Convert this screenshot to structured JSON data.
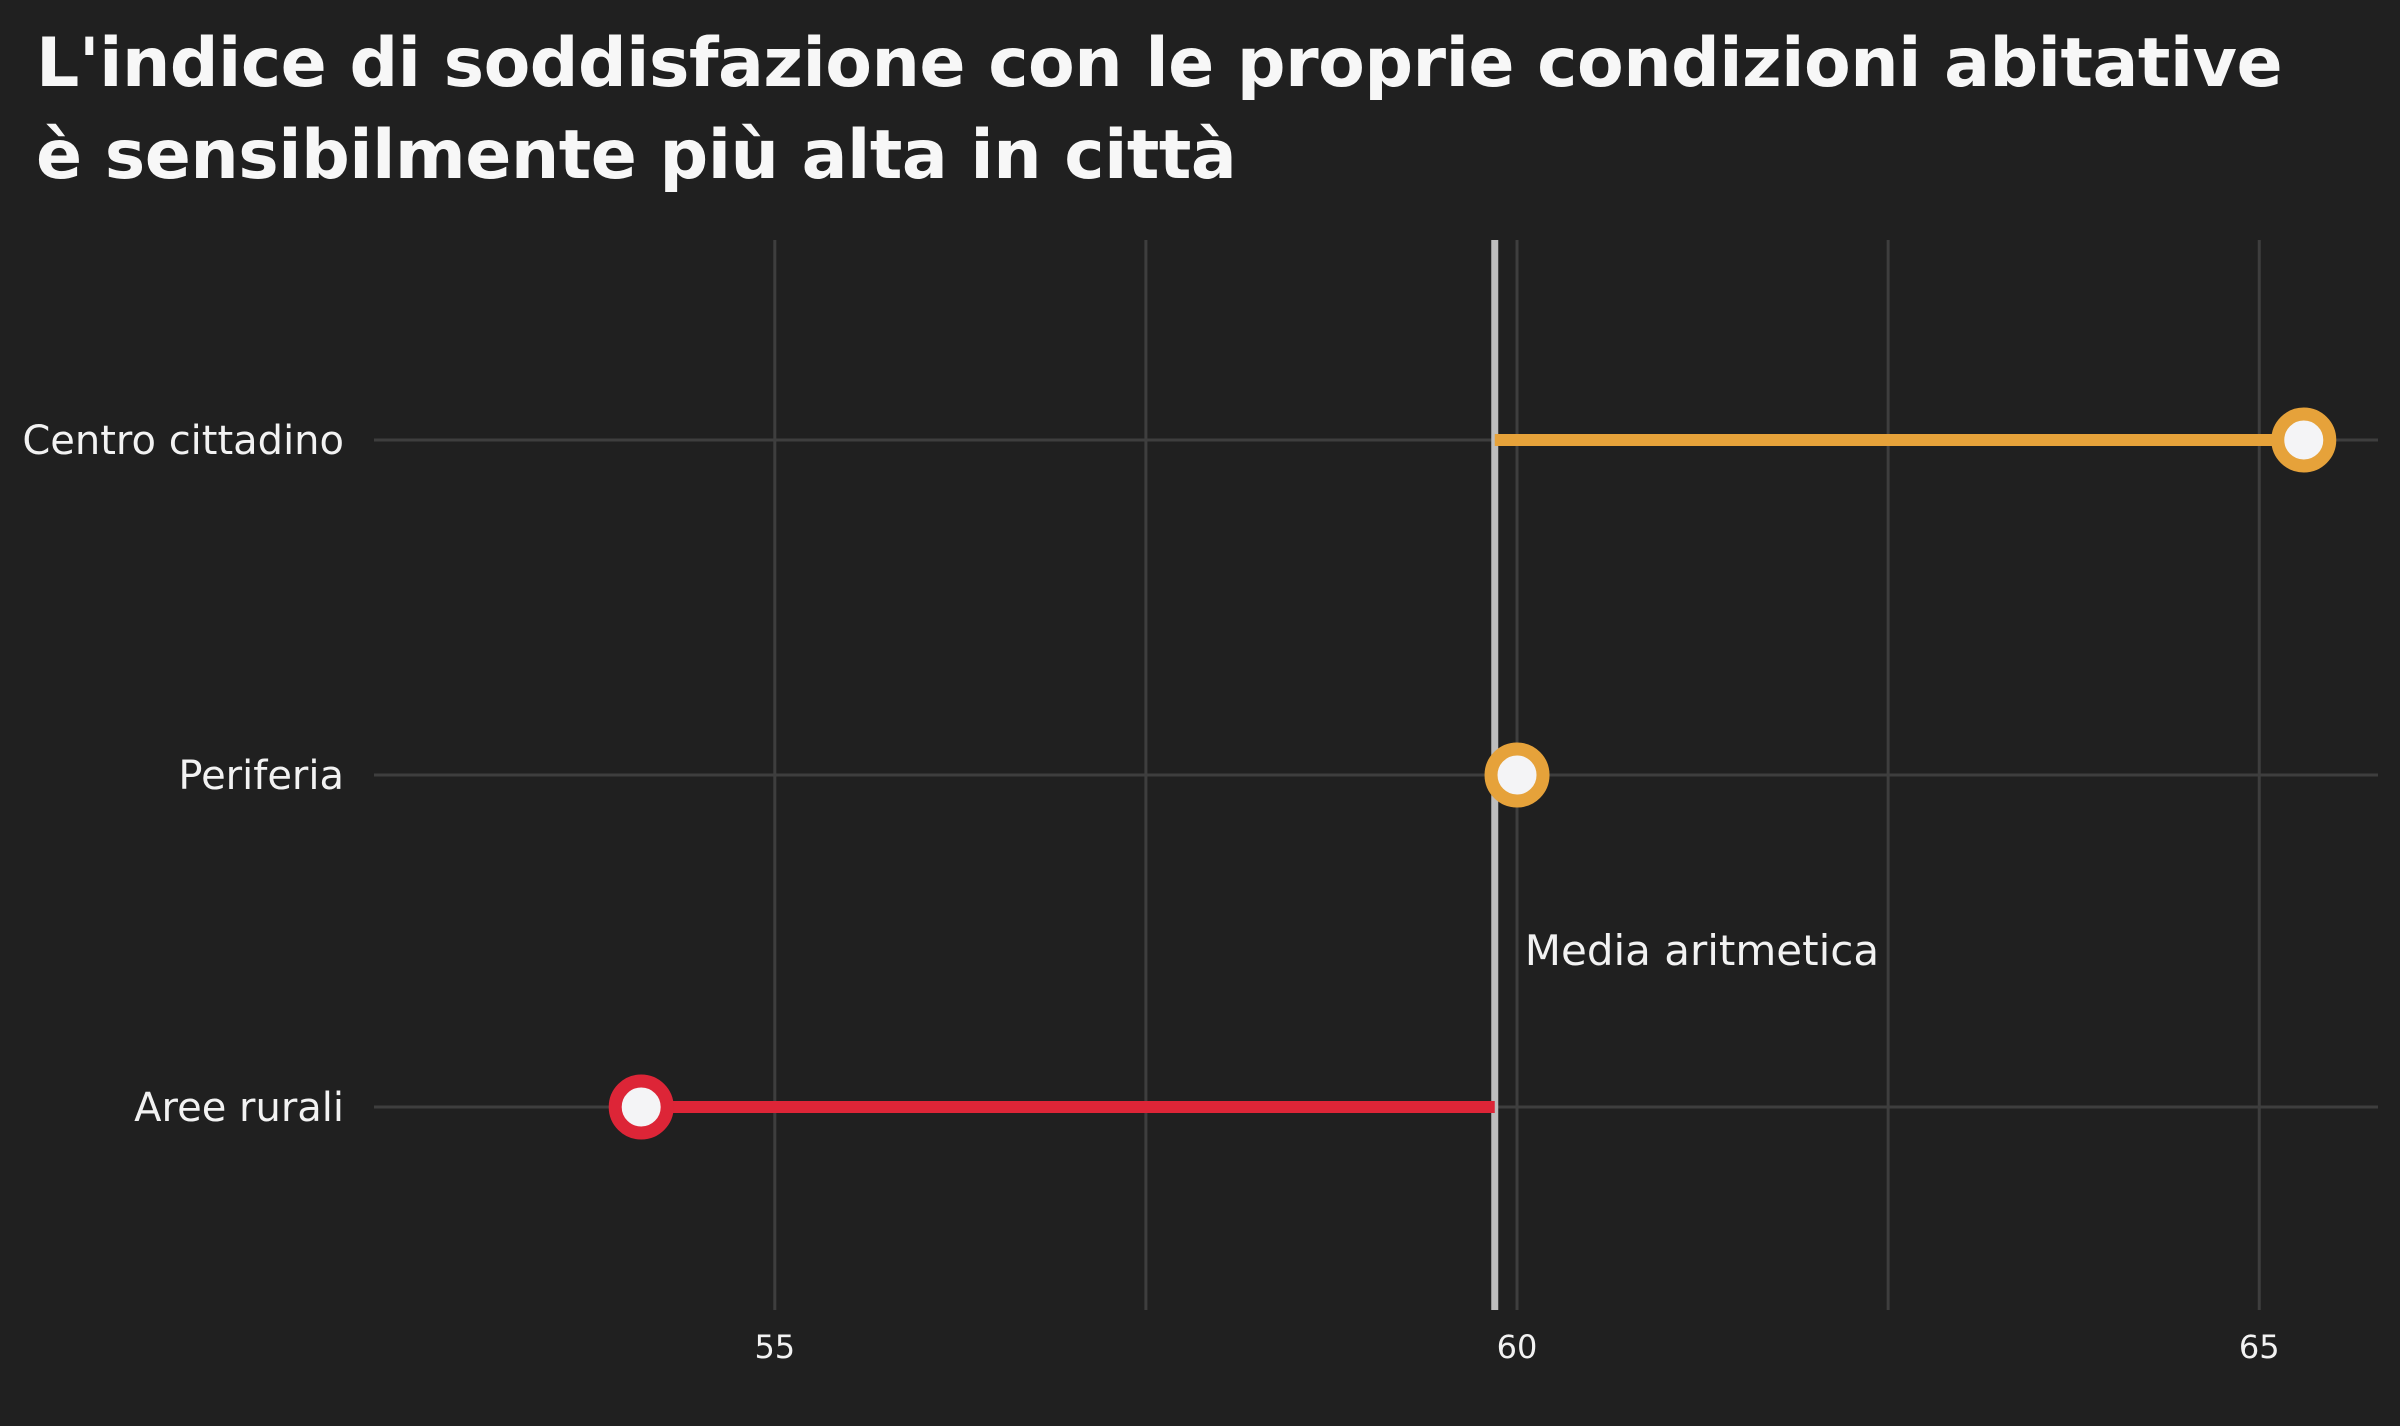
{
  "chart_data": {
    "type": "dot",
    "title": "L'indice di soddisfazione con le proprie condizioni abitative è sensibilmente più alta in città",
    "xlabel": "",
    "ylabel": "",
    "xlim": [
      52.3,
      65.8
    ],
    "x_ticks": [
      55,
      60,
      65
    ],
    "x_tick_labels": [
      "55",
      "60",
      "65"
    ],
    "x_minor_gridlines": [
      57.5,
      62.5
    ],
    "grid": true,
    "categories": [
      "Centro cittadino",
      "Periferia",
      "Aree rurali"
    ],
    "values": [
      65.3,
      60.0,
      54.1
    ],
    "reference_line": {
      "value": 59.85,
      "label": "Media aritmetica"
    },
    "colors": {
      "background": "#202020",
      "above_mean": "#E6A23A",
      "below_mean": "#DD2537",
      "marker_fill": "#F4F4F6",
      "reference_line": "#BDBDBD",
      "gridline": "#3E3E3E",
      "text": "#F4F4F4"
    }
  }
}
